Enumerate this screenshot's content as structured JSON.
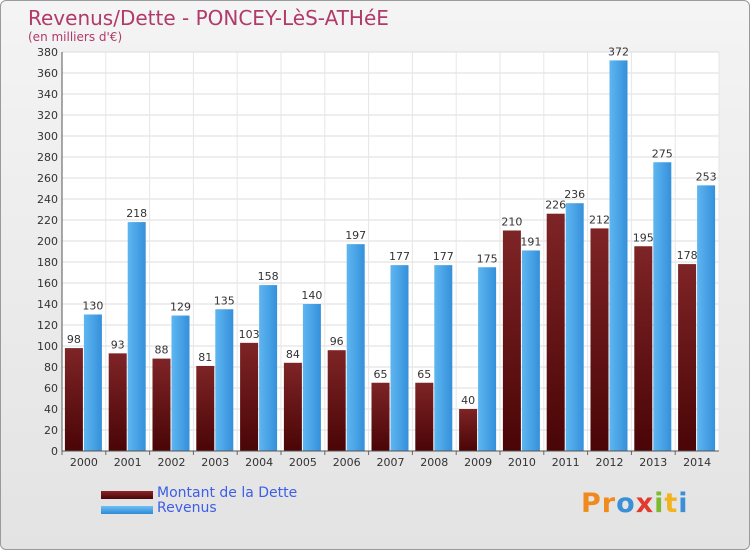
{
  "title": "Revenus/Dette - PONCEY-LèS-ATHéE",
  "subtitle": "(en milliers d'€)",
  "colors": {
    "debt": "#7a1a1c",
    "revenue": "#3f9de4",
    "title": "#b03a68",
    "legend_text": "#3c5ee8"
  },
  "legend": [
    {
      "label": "Montant de la Dette",
      "color": "#6b1416"
    },
    {
      "label": "Revenus",
      "color": "#3f9de4"
    }
  ],
  "logo": {
    "text": "Proxiti",
    "letters": [
      {
        "char": "P",
        "color": "#f08a1e"
      },
      {
        "char": "r",
        "color": "#f08a1e"
      },
      {
        "char": "o",
        "color": "#3a8fd6"
      },
      {
        "char": "x",
        "color": "#e23a2e"
      },
      {
        "char": "i",
        "color": "#7dbb2e"
      },
      {
        "char": "t",
        "color": "#f2b31e"
      },
      {
        "char": "i",
        "color": "#3a8fd6"
      }
    ]
  },
  "chart_data": {
    "type": "bar",
    "title": "Revenus/Dette - PONCEY-LèS-ATHéE",
    "subtitle": "(en milliers d'€)",
    "categories": [
      "2000",
      "2001",
      "2002",
      "2003",
      "2004",
      "2005",
      "2006",
      "2007",
      "2008",
      "2009",
      "2010",
      "2011",
      "2012",
      "2013",
      "2014"
    ],
    "series": [
      {
        "name": "Montant de la Dette",
        "values": [
          98,
          93,
          88,
          81,
          103,
          84,
          96,
          65,
          65,
          40,
          210,
          226,
          212,
          195,
          178
        ]
      },
      {
        "name": "Revenus",
        "values": [
          130,
          218,
          129,
          135,
          158,
          140,
          197,
          177,
          177,
          175,
          191,
          236,
          372,
          275,
          253
        ]
      }
    ],
    "ylim": [
      0,
      380
    ],
    "yticks": [
      0,
      20,
      40,
      60,
      80,
      100,
      120,
      140,
      160,
      180,
      200,
      220,
      240,
      260,
      280,
      300,
      320,
      340,
      360,
      380
    ],
    "grid": true,
    "legend_position": "bottom-left"
  }
}
